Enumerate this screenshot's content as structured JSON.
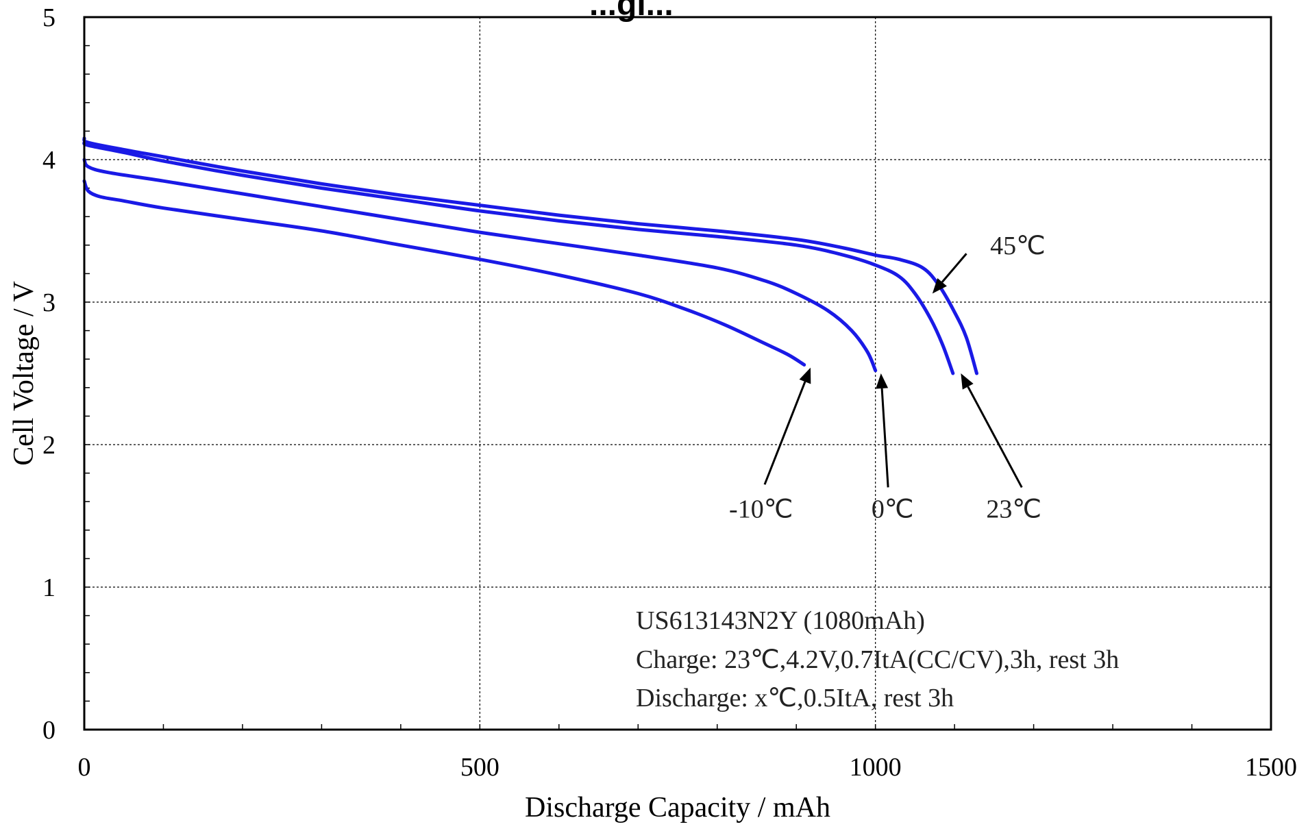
{
  "chart_data": {
    "type": "line",
    "title_fragment": "...gi...",
    "xlabel": "Discharge Capacity / mAh",
    "ylabel": "Cell Voltage / V",
    "xlim": [
      0,
      1500
    ],
    "ylim": [
      0,
      5
    ],
    "x_ticks": [
      "0",
      "500",
      "1000",
      "1500"
    ],
    "y_ticks": [
      "0",
      "1",
      "2",
      "3",
      "4",
      "5"
    ],
    "grid": true,
    "series_color": "#1a1ae6",
    "series": [
      {
        "name": "45℃",
        "points": [
          [
            0,
            4.15
          ],
          [
            5,
            4.12
          ],
          [
            50,
            4.07
          ],
          [
            100,
            4.02
          ],
          [
            200,
            3.92
          ],
          [
            300,
            3.83
          ],
          [
            400,
            3.75
          ],
          [
            500,
            3.68
          ],
          [
            600,
            3.61
          ],
          [
            700,
            3.55
          ],
          [
            800,
            3.5
          ],
          [
            900,
            3.44
          ],
          [
            960,
            3.38
          ],
          [
            1000,
            3.33
          ],
          [
            1030,
            3.3
          ],
          [
            1060,
            3.24
          ],
          [
            1080,
            3.12
          ],
          [
            1100,
            2.93
          ],
          [
            1115,
            2.75
          ],
          [
            1128,
            2.5
          ]
        ]
      },
      {
        "name": "23℃",
        "points": [
          [
            0,
            4.12
          ],
          [
            5,
            4.1
          ],
          [
            50,
            4.05
          ],
          [
            100,
            3.99
          ],
          [
            200,
            3.89
          ],
          [
            300,
            3.8
          ],
          [
            400,
            3.72
          ],
          [
            500,
            3.64
          ],
          [
            600,
            3.57
          ],
          [
            700,
            3.51
          ],
          [
            800,
            3.46
          ],
          [
            900,
            3.4
          ],
          [
            960,
            3.33
          ],
          [
            1000,
            3.26
          ],
          [
            1030,
            3.18
          ],
          [
            1050,
            3.06
          ],
          [
            1070,
            2.88
          ],
          [
            1085,
            2.7
          ],
          [
            1098,
            2.5
          ]
        ]
      },
      {
        "name": "0℃",
        "points": [
          [
            0,
            4.0
          ],
          [
            5,
            3.95
          ],
          [
            30,
            3.91
          ],
          [
            100,
            3.85
          ],
          [
            200,
            3.76
          ],
          [
            300,
            3.67
          ],
          [
            400,
            3.58
          ],
          [
            500,
            3.49
          ],
          [
            600,
            3.41
          ],
          [
            700,
            3.33
          ],
          [
            800,
            3.24
          ],
          [
            860,
            3.15
          ],
          [
            900,
            3.06
          ],
          [
            940,
            2.94
          ],
          [
            970,
            2.8
          ],
          [
            990,
            2.65
          ],
          [
            1000,
            2.52
          ]
        ]
      },
      {
        "name": "-10℃",
        "points": [
          [
            0,
            3.85
          ],
          [
            5,
            3.78
          ],
          [
            20,
            3.74
          ],
          [
            50,
            3.71
          ],
          [
            100,
            3.66
          ],
          [
            200,
            3.58
          ],
          [
            300,
            3.5
          ],
          [
            400,
            3.4
          ],
          [
            500,
            3.3
          ],
          [
            600,
            3.19
          ],
          [
            700,
            3.06
          ],
          [
            760,
            2.95
          ],
          [
            810,
            2.84
          ],
          [
            860,
            2.71
          ],
          [
            890,
            2.63
          ],
          [
            910,
            2.56
          ]
        ]
      }
    ],
    "annotations": [
      {
        "label": "45℃",
        "text_x": 1145,
        "text_y": 3.4,
        "arrow_from": [
          1115,
          3.34
        ],
        "arrow_to": [
          1072,
          3.06
        ]
      },
      {
        "label": "23℃",
        "text_x": 1140,
        "text_y": 1.55,
        "arrow_from": [
          1185,
          1.7
        ],
        "arrow_to": [
          1108,
          2.5
        ]
      },
      {
        "label": "0℃",
        "text_x": 995,
        "text_y": 1.55,
        "arrow_from": [
          1016,
          1.7
        ],
        "arrow_to": [
          1007,
          2.5
        ]
      },
      {
        "label": "-10℃",
        "text_x": 815,
        "text_y": 1.55,
        "arrow_from": [
          860,
          1.72
        ],
        "arrow_to": [
          918,
          2.54
        ]
      }
    ],
    "notes": [
      "US613143N2Y (1080mAh)",
      "Charge: 23℃,4.2V,0.7ItA(CC/CV),3h, rest 3h",
      "Discharge: x℃,0.5ItA, rest 3h"
    ]
  }
}
